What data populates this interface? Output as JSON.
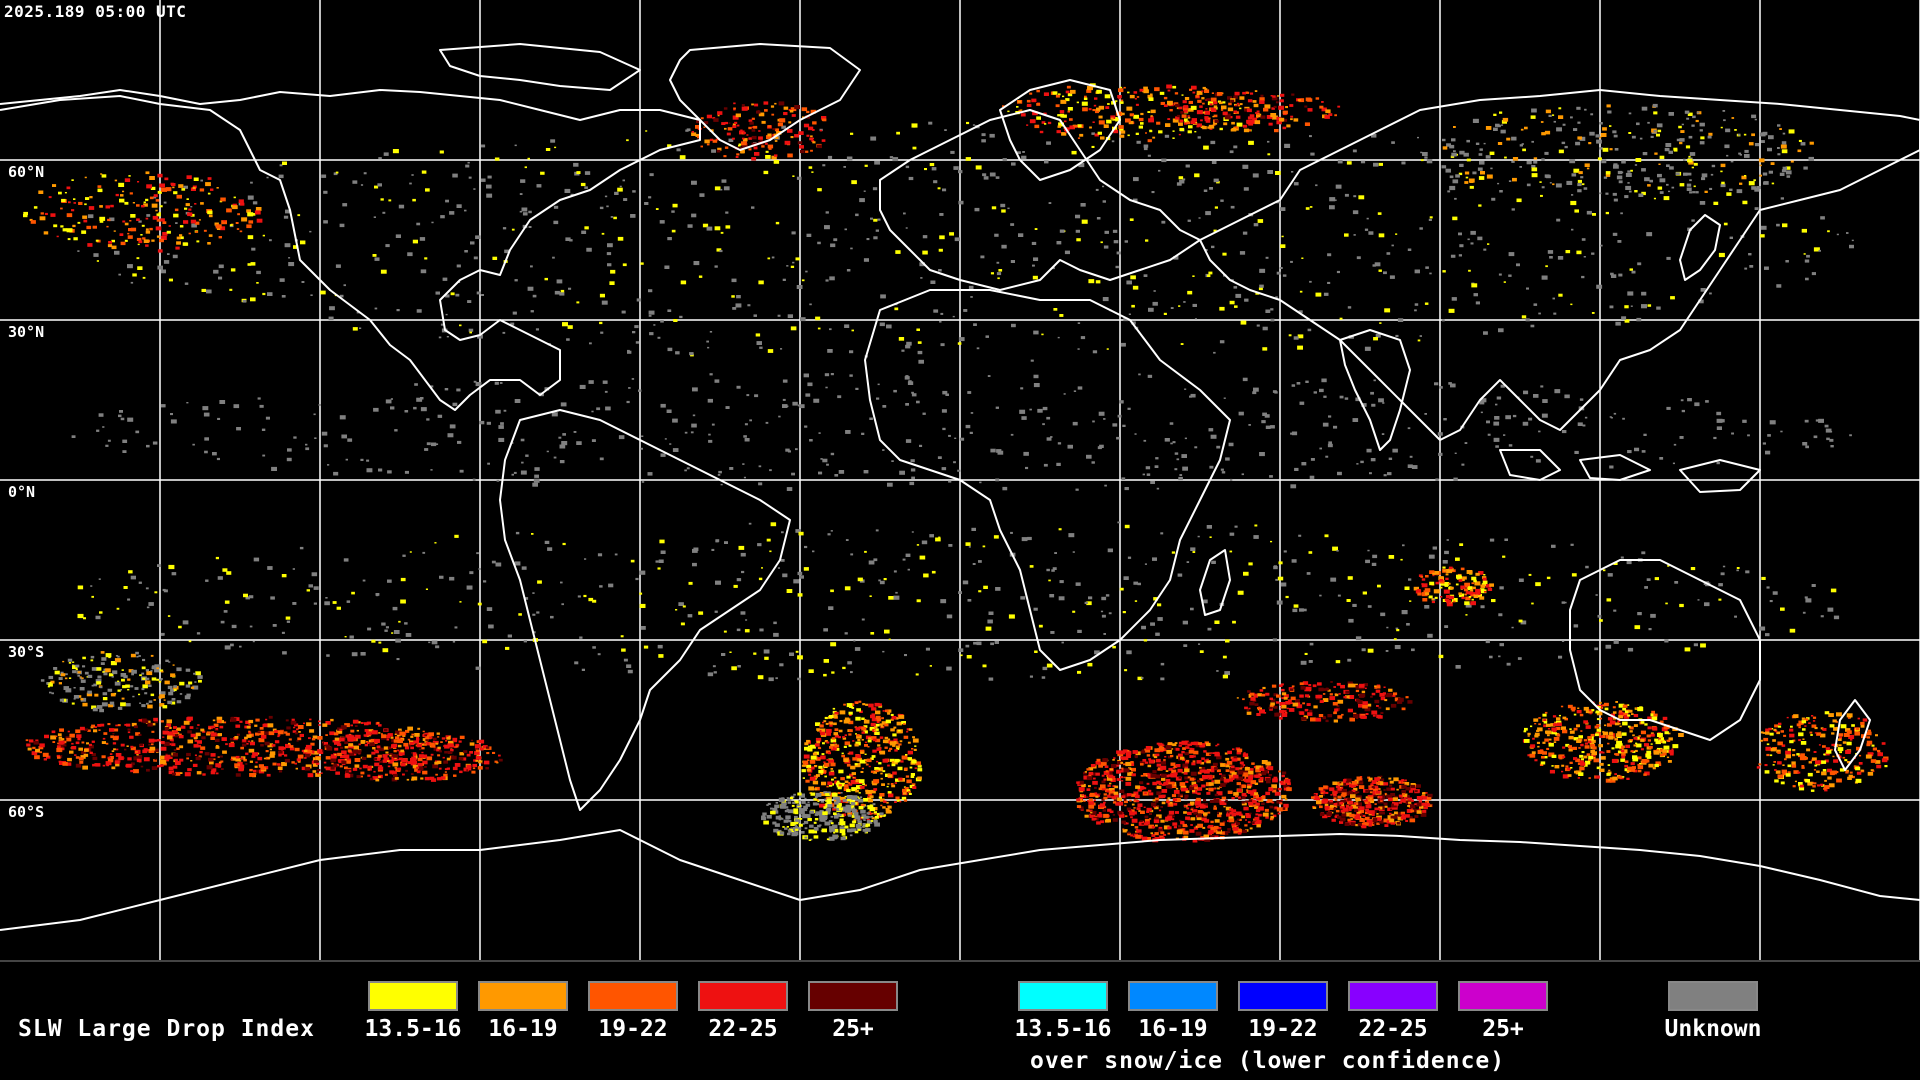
{
  "timestamp": "2025.189 05:00 UTC",
  "map": {
    "latitude_labels": [
      "60°N",
      "30°N",
      "0°N",
      "30°S",
      "60°S"
    ],
    "gridline_color": "#ffffff",
    "coastline_color": "#ffffff",
    "background_color": "#000000"
  },
  "legend": {
    "title": "SLW Large Drop Index",
    "primary": [
      {
        "label": "13.5-16",
        "color": "#ffff00"
      },
      {
        "label": "16-19",
        "color": "#ff9900"
      },
      {
        "label": "19-22",
        "color": "#ff5500"
      },
      {
        "label": "22-25",
        "color": "#ee1111"
      },
      {
        "label": "25+",
        "color": "#660000"
      }
    ],
    "snow_ice": [
      {
        "label": "13.5-16",
        "color": "#00ffff"
      },
      {
        "label": "16-19",
        "color": "#0088ff"
      },
      {
        "label": "19-22",
        "color": "#0000ff"
      },
      {
        "label": "22-25",
        "color": "#8800ff"
      },
      {
        "label": "25+",
        "color": "#cc00cc"
      }
    ],
    "snow_ice_note": "over snow/ice (lower confidence)",
    "unknown": {
      "label": "Unknown",
      "color": "#808080"
    }
  }
}
